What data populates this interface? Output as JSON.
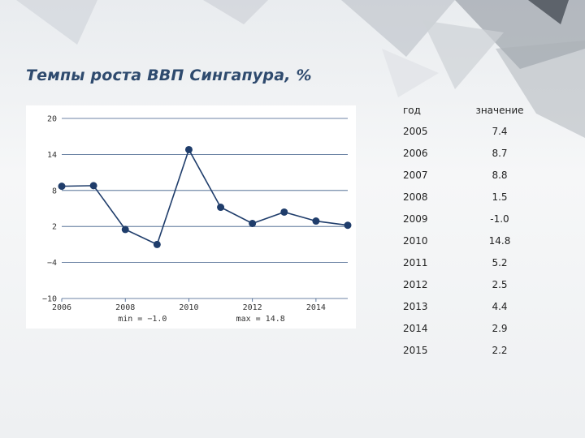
{
  "title": "Темпы роста ВВП Сингапура, %",
  "table": {
    "header_year": "год",
    "header_value": "значение",
    "rows": [
      {
        "year": "2005",
        "value": "7.4"
      },
      {
        "year": "2006",
        "value": "8.7"
      },
      {
        "year": "2007",
        "value": "8.8"
      },
      {
        "year": "2008",
        "value": "1.5"
      },
      {
        "year": "2009",
        "value": "-1.0"
      },
      {
        "year": "2010",
        "value": "14.8"
      },
      {
        "year": "2011",
        "value": "5.2"
      },
      {
        "year": "2012",
        "value": "2.5"
      },
      {
        "year": "2013",
        "value": "4.4"
      },
      {
        "year": "2014",
        "value": "2.9"
      },
      {
        "year": "2015",
        "value": "2.2"
      }
    ]
  },
  "chart_data": {
    "type": "line",
    "title": "",
    "xlabel": "",
    "ylabel": "",
    "x": [
      2006,
      2007,
      2008,
      2009,
      2010,
      2011,
      2012,
      2013,
      2014,
      2015
    ],
    "series": [
      {
        "values": [
          8.7,
          8.8,
          1.5,
          -1.0,
          14.8,
          5.2,
          2.5,
          4.4,
          2.9,
          2.2
        ]
      }
    ],
    "xlim": [
      2006,
      2015
    ],
    "ylim": [
      -10,
      20
    ],
    "yticks": [
      "20",
      "14",
      "8",
      "2",
      "−4",
      "−10"
    ],
    "ytick_values": [
      20,
      14,
      8,
      2,
      -4,
      -10
    ],
    "xticks": [
      "2006",
      "2008",
      "2010",
      "2012",
      "2014"
    ],
    "xtick_values": [
      2006,
      2008,
      2010,
      2012,
      2014
    ],
    "grid": "horizontal",
    "annotations": {
      "min": "min = −1.0",
      "max": "max = 14.8"
    },
    "line_color": "#1f3d6b",
    "grid_color": "#3b5a86"
  }
}
